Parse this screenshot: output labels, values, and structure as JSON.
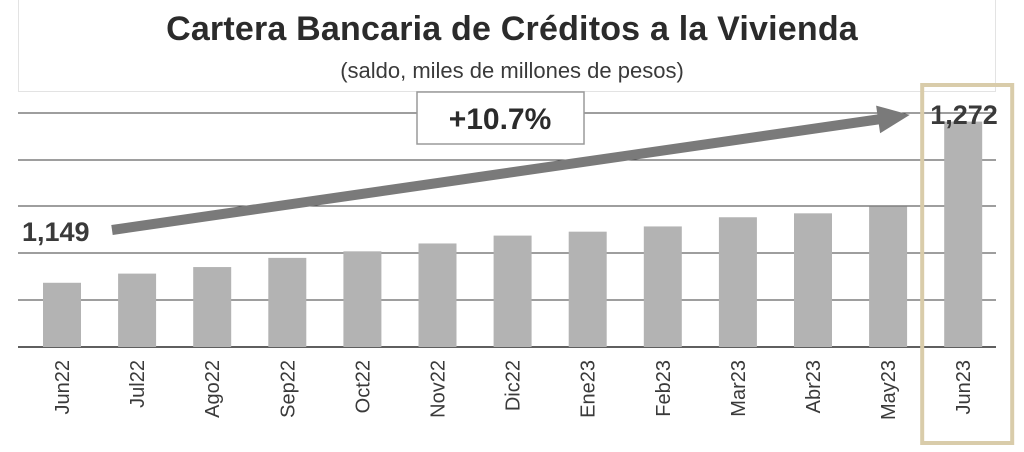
{
  "chart_data": {
    "type": "bar",
    "title": "Cartera Bancaria de Créditos a la Vivienda",
    "subtitle": "(saldo, miles de millones de pesos)",
    "categories": [
      "Jun22",
      "Jul22",
      "Ago22",
      "Sep22",
      "Oct22",
      "Nov22",
      "Dic22",
      "Ene23",
      "Feb23",
      "Mar23",
      "Abr23",
      "May23",
      "Jun23"
    ],
    "values": [
      1149,
      1156,
      1161,
      1168,
      1173,
      1179,
      1185,
      1188,
      1192,
      1199,
      1202,
      1207,
      1272
    ],
    "ylim": [
      1100,
      1290
    ],
    "grid": true,
    "annotations": {
      "start_label": "1,149",
      "end_label": "1,272",
      "growth_label": "+10.7%"
    },
    "colors": {
      "bar": "#b3b3b3",
      "arrow": "#7a7a7a",
      "highlight_border": "#d9ccaa",
      "text": "#3a3a3a"
    }
  }
}
